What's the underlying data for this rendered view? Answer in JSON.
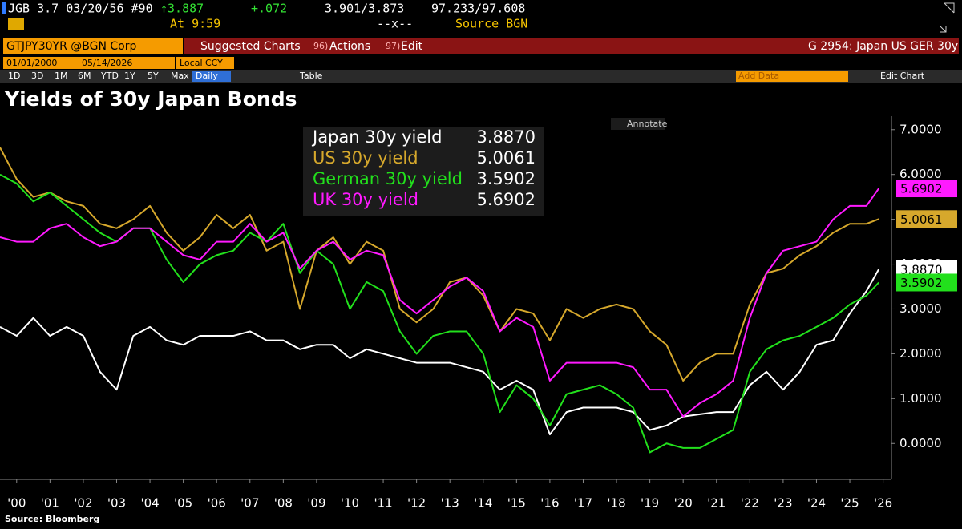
{
  "header": {
    "security": "JGB 3.7 03/20/56 #90",
    "last_price": "↑3.887",
    "change": "+.072",
    "bid_ask_yield": "3.901/3.873",
    "bid_ask_price": "97.233/97.608",
    "time": "At 9:59",
    "spread": "--x--",
    "source": "Source BGN"
  },
  "toolbar": {
    "ticker": "GTJPY30YR @BGN Corp",
    "suggested": "Suggested Charts",
    "actions_code": "96)",
    "actions": "Actions",
    "edit_code": "97)",
    "edit": "Edit",
    "chart_id": "G 2954: Japan US GER 30y"
  },
  "range": {
    "start": "01/01/2000",
    "end": "05/14/2026",
    "currency": "Local CCY"
  },
  "periods": [
    "1D",
    "3D",
    "1M",
    "6M",
    "YTD",
    "1Y",
    "5Y",
    "Max"
  ],
  "frequency": "Daily",
  "table": "Table",
  "add_data": "Add Data",
  "edit_chart": "Edit Chart",
  "annotate": "Annotate",
  "chart_data": {
    "type": "line",
    "title": "Yields of 30y Japan Bonds",
    "source": "Source: Bloomberg",
    "x": [
      2000,
      2000.5,
      2001,
      2001.5,
      2002,
      2002.5,
      2003,
      2003.5,
      2004,
      2004.5,
      2005,
      2005.5,
      2006,
      2006.5,
      2007,
      2007.5,
      2008,
      2008.5,
      2009,
      2009.5,
      2010,
      2010.5,
      2011,
      2011.5,
      2012,
      2012.5,
      2013,
      2013.5,
      2014,
      2014.5,
      2015,
      2015.5,
      2016,
      2016.5,
      2017,
      2017.5,
      2018,
      2018.5,
      2019,
      2019.5,
      2020,
      2020.5,
      2021,
      2021.5,
      2022,
      2022.5,
      2023,
      2023.5,
      2024,
      2024.5,
      2025,
      2025.5,
      2026,
      2026.37
    ],
    "series": [
      {
        "name": "Japan 30y yield",
        "color": "#ffffff",
        "values": [
          2.6,
          2.4,
          2.8,
          2.4,
          2.6,
          2.4,
          1.6,
          1.2,
          2.4,
          2.6,
          2.3,
          2.2,
          2.4,
          2.4,
          2.4,
          2.5,
          2.3,
          2.3,
          2.1,
          2.2,
          2.2,
          1.9,
          2.1,
          2.0,
          1.9,
          1.8,
          1.8,
          1.8,
          1.7,
          1.6,
          1.2,
          1.4,
          1.2,
          0.2,
          0.7,
          0.8,
          0.8,
          0.8,
          0.7,
          0.3,
          0.4,
          0.6,
          0.65,
          0.7,
          0.7,
          1.3,
          1.6,
          1.2,
          1.6,
          2.2,
          2.3,
          2.9,
          3.4,
          3.887
        ],
        "value_labels": [
          null,
          null,
          null,
          null,
          null,
          null,
          null,
          null,
          null,
          null,
          null,
          null,
          null,
          null,
          null,
          null,
          null,
          null,
          null,
          null,
          null,
          null,
          null,
          null,
          null,
          null,
          null,
          null,
          null,
          null,
          null,
          null,
          null,
          null,
          null,
          null,
          null,
          null,
          null,
          null,
          null,
          null,
          null,
          null,
          null,
          null,
          null,
          null,
          null,
          null,
          null,
          null,
          null,
          "3.8870"
        ]
      },
      {
        "name": "US 30y yield",
        "color": "#d6a82c",
        "values": [
          6.6,
          5.9,
          5.5,
          5.6,
          5.4,
          5.3,
          4.9,
          4.8,
          5.0,
          5.3,
          4.7,
          4.3,
          4.6,
          5.1,
          4.8,
          5.1,
          4.3,
          4.5,
          3.0,
          4.3,
          4.6,
          4.0,
          4.5,
          4.3,
          3.0,
          2.7,
          3.0,
          3.6,
          3.7,
          3.3,
          2.5,
          3.0,
          2.9,
          2.3,
          3.0,
          2.8,
          3.0,
          3.1,
          3.0,
          2.5,
          2.2,
          1.4,
          1.8,
          2.0,
          2.0,
          3.1,
          3.8,
          3.9,
          4.2,
          4.4,
          4.7,
          4.9,
          4.9,
          5.0061
        ],
        "value_labels": [
          null,
          null,
          null,
          null,
          null,
          null,
          null,
          null,
          null,
          null,
          null,
          null,
          null,
          null,
          null,
          null,
          null,
          null,
          null,
          null,
          null,
          null,
          null,
          null,
          null,
          null,
          null,
          null,
          null,
          null,
          null,
          null,
          null,
          null,
          null,
          null,
          null,
          null,
          null,
          null,
          null,
          null,
          null,
          null,
          null,
          null,
          null,
          null,
          null,
          null,
          null,
          null,
          null,
          "5.0061"
        ]
      },
      {
        "name": "German 30y yield",
        "color": "#22e01c",
        "values": [
          6.0,
          5.8,
          5.4,
          5.6,
          5.3,
          5.0,
          4.7,
          4.5,
          4.8,
          4.8,
          4.1,
          3.6,
          4.0,
          4.2,
          4.3,
          4.7,
          4.5,
          4.9,
          3.8,
          4.3,
          4.0,
          3.0,
          3.6,
          3.4,
          2.5,
          2.0,
          2.4,
          2.5,
          2.5,
          2.0,
          0.7,
          1.3,
          1.0,
          0.4,
          1.1,
          1.2,
          1.3,
          1.1,
          0.8,
          -0.2,
          0.0,
          -0.1,
          -0.1,
          0.1,
          0.3,
          1.6,
          2.1,
          2.3,
          2.4,
          2.6,
          2.8,
          3.1,
          3.3,
          3.5902
        ],
        "value_labels": [
          null,
          null,
          null,
          null,
          null,
          null,
          null,
          null,
          null,
          null,
          null,
          null,
          null,
          null,
          null,
          null,
          null,
          null,
          null,
          null,
          null,
          null,
          null,
          null,
          null,
          null,
          null,
          null,
          null,
          null,
          null,
          null,
          null,
          null,
          null,
          null,
          null,
          null,
          null,
          null,
          null,
          null,
          null,
          null,
          null,
          null,
          null,
          null,
          null,
          null,
          null,
          null,
          null,
          "3.5902"
        ]
      },
      {
        "name": "UK 30y yield",
        "color": "#ff1aff",
        "values": [
          4.6,
          4.5,
          4.5,
          4.8,
          4.9,
          4.6,
          4.4,
          4.5,
          4.8,
          4.8,
          4.5,
          4.2,
          4.1,
          4.5,
          4.5,
          4.9,
          4.5,
          4.7,
          3.9,
          4.3,
          4.5,
          4.1,
          4.3,
          4.2,
          3.2,
          2.9,
          3.2,
          3.5,
          3.7,
          3.4,
          2.5,
          2.8,
          2.6,
          1.4,
          1.8,
          1.8,
          1.8,
          1.8,
          1.7,
          1.2,
          1.2,
          0.6,
          0.9,
          1.1,
          1.4,
          2.8,
          3.8,
          4.3,
          4.4,
          4.5,
          5.0,
          5.3,
          5.3,
          5.6902
        ],
        "value_labels": [
          null,
          null,
          null,
          null,
          null,
          null,
          null,
          null,
          null,
          null,
          null,
          null,
          null,
          null,
          null,
          null,
          null,
          null,
          null,
          null,
          null,
          null,
          null,
          null,
          null,
          null,
          null,
          null,
          null,
          null,
          null,
          null,
          null,
          null,
          null,
          null,
          null,
          null,
          null,
          null,
          null,
          null,
          null,
          null,
          null,
          null,
          null,
          null,
          null,
          null,
          null,
          null,
          null,
          "5.6902"
        ]
      }
    ],
    "xlim": [
      2000,
      2026.75
    ],
    "xticks": [
      {
        "value": 2000.5,
        "label": "'00"
      },
      {
        "value": 2001.5,
        "label": "'01"
      },
      {
        "value": 2002.5,
        "label": "'02"
      },
      {
        "value": 2003.5,
        "label": "'03"
      },
      {
        "value": 2004.5,
        "label": "'04"
      },
      {
        "value": 2005.5,
        "label": "'05"
      },
      {
        "value": 2006.5,
        "label": "'06"
      },
      {
        "value": 2007.5,
        "label": "'07"
      },
      {
        "value": 2008.5,
        "label": "'08"
      },
      {
        "value": 2009.5,
        "label": "'09"
      },
      {
        "value": 2010.5,
        "label": "'10"
      },
      {
        "value": 2011.5,
        "label": "'11"
      },
      {
        "value": 2012.5,
        "label": "'12"
      },
      {
        "value": 2013.5,
        "label": "'13"
      },
      {
        "value": 2014.5,
        "label": "'14"
      },
      {
        "value": 2015.5,
        "label": "'15"
      },
      {
        "value": 2016.5,
        "label": "'16"
      },
      {
        "value": 2017.5,
        "label": "'17"
      },
      {
        "value": 2018.5,
        "label": "'18"
      },
      {
        "value": 2019.5,
        "label": "'19"
      },
      {
        "value": 2020.5,
        "label": "'20"
      },
      {
        "value": 2021.5,
        "label": "'21"
      },
      {
        "value": 2022.5,
        "label": "'22"
      },
      {
        "value": 2023.5,
        "label": "'23"
      },
      {
        "value": 2024.5,
        "label": "'24"
      },
      {
        "value": 2025.5,
        "label": "'25"
      },
      {
        "value": 2026.5,
        "label": "'26"
      }
    ],
    "ylim": [
      -0.8,
      7.3
    ],
    "yticks": [
      {
        "value": 0,
        "label": "0.0000"
      },
      {
        "value": 1,
        "label": "1.0000"
      },
      {
        "value": 2,
        "label": "2.0000"
      },
      {
        "value": 3,
        "label": "3.0000"
      },
      {
        "value": 4,
        "label": "4.0000"
      },
      {
        "value": 5,
        "label": "5.0000"
      },
      {
        "value": 6,
        "label": "6.0000"
      },
      {
        "value": 7,
        "label": "7.0000"
      }
    ],
    "y_axis_side": "right",
    "grid": false
  }
}
